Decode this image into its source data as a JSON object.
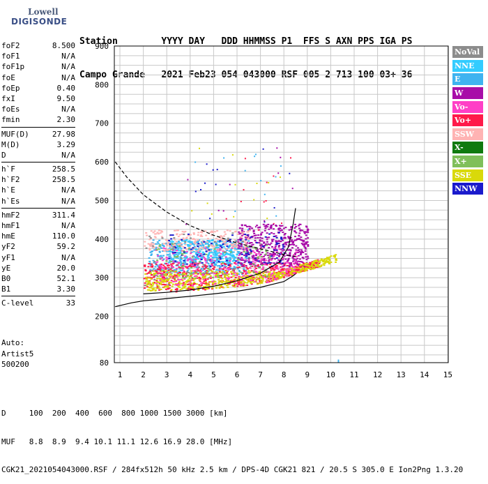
{
  "logo": {
    "line1": "Lowell",
    "line2": "DIGISONDE"
  },
  "header": {
    "line1": "Station        YYYY DAY   DDD HHMMSS P1  FFS S AXN PPS IGA PS",
    "line2": "Campo Grande   2021 Feb23 054 043000 RSF 005 2 713 100 03+ 36"
  },
  "params": {
    "group1": [
      {
        "name": "foF2",
        "value": "8.500"
      },
      {
        "name": "foF1",
        "value": "N/A"
      },
      {
        "name": "foF1p",
        "value": "N/A"
      },
      {
        "name": "foE",
        "value": "N/A"
      },
      {
        "name": "foEp",
        "value": "0.40"
      },
      {
        "name": "fxI",
        "value": "9.50"
      },
      {
        "name": "foEs",
        "value": "N/A"
      },
      {
        "name": "fmin",
        "value": "2.30"
      }
    ],
    "group2": [
      {
        "name": "MUF(D)",
        "value": "27.98"
      },
      {
        "name": "M(D)",
        "value": "3.29"
      },
      {
        "name": "D",
        "value": "N/A"
      }
    ],
    "group3": [
      {
        "name": "h`F",
        "value": "258.5"
      },
      {
        "name": "h`F2",
        "value": "258.5"
      },
      {
        "name": "h`E",
        "value": "N/A"
      },
      {
        "name": "h`Es",
        "value": "N/A"
      }
    ],
    "group4": [
      {
        "name": "hmF2",
        "value": "311.4"
      },
      {
        "name": "hmF1",
        "value": "N/A"
      },
      {
        "name": "hmE",
        "value": "110.0"
      },
      {
        "name": "yF2",
        "value": "59.2"
      },
      {
        "name": "yF1",
        "value": "N/A"
      },
      {
        "name": "yE",
        "value": "20.0"
      },
      {
        "name": "B0",
        "value": "52.1"
      },
      {
        "name": "B1",
        "value": "3.30"
      }
    ],
    "group5": [
      {
        "name": "C-level",
        "value": "33"
      }
    ]
  },
  "auto": {
    "line1": "Auto:",
    "line2": "Artist5",
    "line3": "500200"
  },
  "legend": [
    {
      "label": "NoVal",
      "color": "#8c8c8c"
    },
    {
      "label": "NNE",
      "color": "#33ccff"
    },
    {
      "label": "E",
      "color": "#3fb3f0"
    },
    {
      "label": "W",
      "color": "#a80da8"
    },
    {
      "label": "Vo-",
      "color": "#ff3fc6"
    },
    {
      "label": "Vo+",
      "color": "#ff1a4a"
    },
    {
      "label": "SSW",
      "color": "#ffb3b3"
    },
    {
      "label": "X-",
      "color": "#0f7a0f"
    },
    {
      "label": "X+",
      "color": "#7fbf5a"
    },
    {
      "label": "SSE",
      "color": "#d9d90a"
    },
    {
      "label": "NNW",
      "color": "#1a1acc"
    }
  ],
  "footer": {
    "line1": "D     100  200  400  600  800 1000 1500 3000 [km]",
    "line2": "MUF   8.8  8.9  9.4 10.1 11.1 12.6 16.9 28.0 [MHz]",
    "line3": "CGK21_2021054043000.RSF / 284fx512h 50 kHz 2.5 km / DPS-4D CGK21 821 / 20.5 S 305.0 E Ion2Png 1.3.20"
  },
  "chart_data": {
    "type": "scatter",
    "xlim": [
      0.8,
      15
    ],
    "ylim": [
      80,
      900
    ],
    "xticks": [
      1,
      2,
      3,
      4,
      5,
      6,
      7,
      8,
      9,
      10,
      11,
      12,
      13,
      14,
      15
    ],
    "yticks": [
      80,
      200,
      300,
      400,
      500,
      600,
      700,
      800,
      900
    ],
    "grid": true,
    "series": [
      {
        "name": "dashed-profile",
        "x": [
          0.8,
          1.3,
          2,
          3,
          4,
          5,
          6,
          7,
          8,
          8.5
        ],
        "y": [
          600,
          560,
          515,
          470,
          435,
          410,
          390,
          375,
          360,
          355
        ]
      },
      {
        "name": "lower-profile",
        "x": [
          0.8,
          1.5,
          2,
          3,
          4,
          5,
          6,
          7,
          8,
          8.4,
          8.5
        ],
        "y": [
          225,
          235,
          240,
          246,
          252,
          258,
          265,
          275,
          290,
          305,
          310
        ]
      },
      {
        "name": "upper-profile",
        "x": [
          2,
          3,
          4,
          5,
          6,
          7,
          7.8,
          8.2,
          8.4,
          8.5
        ],
        "y": [
          258,
          262,
          268,
          278,
          292,
          312,
          340,
          380,
          440,
          480
        ]
      }
    ],
    "echo_clusters": [
      {
        "color": "#3fb3f0",
        "f": [
          2.2,
          6.5
        ],
        "h": [
          310,
          400
        ],
        "n": 450
      },
      {
        "color": "#33ccff",
        "f": [
          3.0,
          6.0
        ],
        "h": [
          340,
          400
        ],
        "n": 250
      },
      {
        "color": "#ff1a4a",
        "f": [
          2.0,
          9.5
        ],
        "h": [
          265,
          340
        ],
        "n": 600
      },
      {
        "color": "#a80da8",
        "f": [
          6.0,
          9.0
        ],
        "h": [
          330,
          440
        ],
        "n": 450
      },
      {
        "color": "#d9d90a",
        "f": [
          2.0,
          10.2
        ],
        "h": [
          268,
          320
        ],
        "n": 550
      },
      {
        "color": "#ff3fc6",
        "f": [
          2.5,
          8.5
        ],
        "h": [
          280,
          380
        ],
        "n": 250
      },
      {
        "color": "#ffb3b3",
        "f": [
          2.0,
          6.5
        ],
        "h": [
          370,
          425
        ],
        "n": 220
      },
      {
        "color": "#7fbf5a",
        "f": [
          2.5,
          7.5
        ],
        "h": [
          300,
          390
        ],
        "n": 80
      },
      {
        "color": "#1a1acc",
        "f": [
          3.0,
          8.0
        ],
        "h": [
          330,
          420
        ],
        "n": 100
      },
      {
        "color": "#8c8c8c",
        "f": [
          2.0,
          7.0
        ],
        "h": [
          280,
          420
        ],
        "n": 50
      }
    ]
  }
}
